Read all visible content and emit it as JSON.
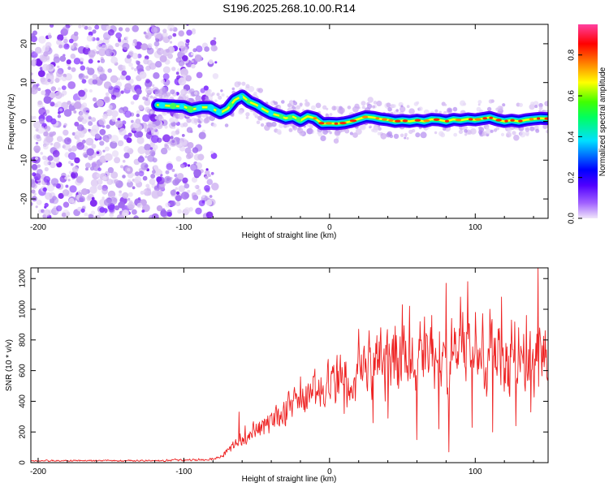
{
  "title": "S196.2025.268.10.00.R14",
  "chart_data": [
    {
      "type": "heatmap",
      "name": "spectrogram",
      "xlabel": "Height of straight line (km)",
      "ylabel": "Frequency (Hz)",
      "xlim": [
        -205,
        150
      ],
      "ylim": [
        -25,
        25
      ],
      "xticks": [
        -200,
        -100,
        0,
        100
      ],
      "yticks": [
        -20,
        -10,
        0,
        10,
        20
      ],
      "x_tick_labels": [
        "-200",
        "-100",
        "0",
        "100"
      ],
      "y_tick_labels": [
        "-20",
        "-10",
        "0",
        "10",
        "20"
      ],
      "colorbar": {
        "label": "Normalized spectral amplitude",
        "range": [
          0,
          0.95
        ],
        "ticks": [
          0.0,
          0.2,
          0.4,
          0.6,
          0.8
        ],
        "tick_labels": [
          "0.0",
          "0.2",
          "0.4",
          "0.6",
          "0.8"
        ],
        "colormap": [
          "#f0e6fa",
          "#8000ff",
          "#0000ff",
          "#00e0ff",
          "#00ff00",
          "#ffff00",
          "#ff8000",
          "#ff0000",
          "#ff40a0"
        ]
      },
      "noise_region_x": [
        -205,
        -78
      ],
      "ridge_points": [
        [
          -118,
          4.2
        ],
        [
          -110,
          4.0
        ],
        [
          -100,
          3.8
        ],
        [
          -95,
          3.0
        ],
        [
          -88,
          3.6
        ],
        [
          -82,
          3.6
        ],
        [
          -75,
          2.2
        ],
        [
          -70,
          3.2
        ],
        [
          -65,
          5.5
        ],
        [
          -60,
          6.5
        ],
        [
          -55,
          5.0
        ],
        [
          -50,
          4.2
        ],
        [
          -45,
          3.0
        ],
        [
          -40,
          2.0
        ],
        [
          -35,
          1.5
        ],
        [
          -30,
          0.8
        ],
        [
          -25,
          1.2
        ],
        [
          -20,
          0.2
        ],
        [
          -15,
          1.3
        ],
        [
          -10,
          0.8
        ],
        [
          -5,
          -0.6
        ],
        [
          0,
          -0.5
        ],
        [
          5,
          -0.6
        ],
        [
          10,
          -0.4
        ],
        [
          15,
          0.0
        ],
        [
          20,
          0.6
        ],
        [
          25,
          1.2
        ],
        [
          30,
          1.0
        ],
        [
          35,
          0.6
        ],
        [
          40,
          0.4
        ],
        [
          45,
          0.0
        ],
        [
          50,
          0.2
        ],
        [
          55,
          0.0
        ],
        [
          60,
          0.3
        ],
        [
          65,
          0.0
        ],
        [
          70,
          0.5
        ],
        [
          75,
          0.4
        ],
        [
          80,
          0.0
        ],
        [
          85,
          0.5
        ],
        [
          90,
          0.3
        ],
        [
          95,
          0.6
        ],
        [
          100,
          0.4
        ],
        [
          105,
          0.7
        ],
        [
          110,
          1.0
        ],
        [
          115,
          0.4
        ],
        [
          120,
          0.0
        ],
        [
          125,
          0.3
        ],
        [
          130,
          0.0
        ],
        [
          135,
          0.4
        ],
        [
          140,
          0.6
        ],
        [
          145,
          0.8
        ],
        [
          150,
          0.7
        ]
      ]
    },
    {
      "type": "line",
      "name": "snr",
      "xlabel": "Height of straight line (km)",
      "ylabel": "SNR (10 * v/v)",
      "xlim": [
        -205,
        150
      ],
      "ylim": [
        0,
        1270
      ],
      "xticks": [
        -200,
        -100,
        0,
        100
      ],
      "yticks": [
        0,
        200,
        400,
        600,
        800,
        1000,
        1200
      ],
      "x_tick_labels": [
        "-200",
        "-100",
        "0",
        "100"
      ],
      "y_tick_labels": [
        "0",
        "200",
        "400",
        "600",
        "800",
        "1000",
        "1200"
      ],
      "color": "#ee2222",
      "envelope": {
        "x": [
          -205,
          -120,
          -90,
          -80,
          -75,
          -70,
          -65,
          -60,
          -50,
          -40,
          -30,
          -20,
          -10,
          0,
          10,
          20,
          30,
          40,
          50,
          60,
          70,
          80,
          90,
          100,
          110,
          120,
          130,
          140,
          150
        ],
        "mean": [
          12,
          12,
          18,
          22,
          30,
          70,
          110,
          150,
          200,
          260,
          330,
          380,
          430,
          480,
          520,
          570,
          600,
          630,
          650,
          660,
          660,
          670,
          680,
          670,
          670,
          660,
          660,
          660,
          660
        ],
        "spread": [
          8,
          8,
          12,
          15,
          20,
          40,
          70,
          90,
          110,
          130,
          150,
          180,
          200,
          220,
          250,
          270,
          290,
          310,
          320,
          340,
          340,
          360,
          380,
          380,
          370,
          360,
          360,
          350,
          330
        ]
      },
      "peaks": [
        [
          -62,
          330
        ],
        [
          -58,
          240
        ],
        [
          -30,
          400
        ],
        [
          -20,
          560
        ],
        [
          -10,
          610
        ],
        [
          5,
          700
        ],
        [
          20,
          870
        ],
        [
          27,
          860
        ],
        [
          35,
          880
        ],
        [
          45,
          890
        ],
        [
          50,
          1030
        ],
        [
          55,
          1020
        ],
        [
          60,
          900
        ],
        [
          70,
          960
        ],
        [
          80,
          1170
        ],
        [
          90,
          1080
        ],
        [
          95,
          1180
        ],
        [
          100,
          980
        ],
        [
          110,
          1000
        ],
        [
          118,
          1080
        ],
        [
          125,
          930
        ],
        [
          135,
          960
        ],
        [
          143,
          1270
        ],
        [
          148,
          860
        ]
      ],
      "troughs": [
        [
          10,
          320
        ],
        [
          30,
          260
        ],
        [
          40,
          290
        ],
        [
          60,
          150
        ],
        [
          75,
          220
        ],
        [
          82,
          70
        ],
        [
          98,
          230
        ],
        [
          112,
          200
        ],
        [
          128,
          240
        ],
        [
          138,
          330
        ]
      ]
    }
  ]
}
